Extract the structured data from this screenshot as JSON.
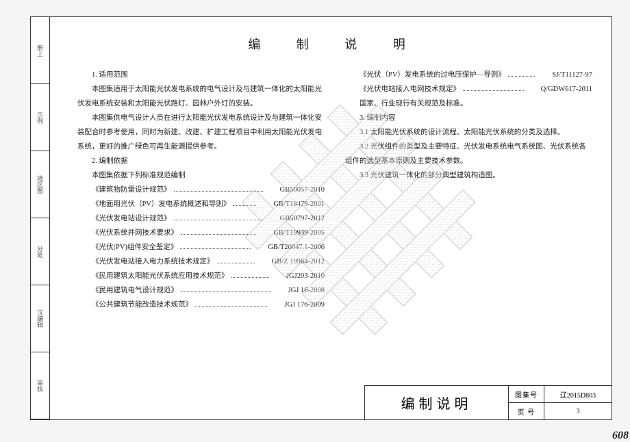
{
  "doc": {
    "title": "编 制 说 明",
    "pageNumber": "608",
    "leftMargin": [
      "册上",
      "示例",
      "地区图",
      "分处",
      "汉编辑",
      "审核"
    ],
    "colLeft": {
      "sec1": {
        "heading": "1. 适用范围",
        "para1": "本图集适用于太阳能光伏发电系统的电气设计及与建筑一体化的太阳能光伏发电系统安装和太阳能光伏路灯、园林户外灯的安装。",
        "para2": "本图集供电气设计人员在进行太阳能光伏发电系统设计及与建筑一体化安装配合时参考使用，同时为新建、改建、扩建工程项目中利用太阳能光伏发电系统，更好的推广绿色可再生能源提供参考。"
      },
      "sec2": {
        "heading": "2. 编制依据",
        "intro": "本图集依据下列标准规范编制",
        "refs": [
          {
            "t": "《建筑物防雷设计规范》",
            "c": "GB50057-2010"
          },
          {
            "t": "《地面用光伏（PV）发电系统概述和导则》",
            "c": "GB/T18479-2001"
          },
          {
            "t": "《光伏发电站设计规范》",
            "c": "GB50797-2012"
          },
          {
            "t": "《光伏系统并网技术要求》",
            "c": "GB/T19939-2005"
          },
          {
            "t": "《光伏(PV)组件安全鉴定》",
            "c": "GB/T20047.1-2006"
          },
          {
            "t": "《光伏发电站接入电力系统技术规定》",
            "c": "GB/Z 19964-2012"
          },
          {
            "t": "《民用建筑太阳能光伏系统应用技术规范》",
            "c": "JGJ203-2010"
          },
          {
            "t": "《民用建筑电气设计规范》",
            "c": "JGJ 16-2008"
          },
          {
            "t": "《公共建筑节能改造技术规范》",
            "c": "JGJ 176-2009"
          }
        ]
      }
    },
    "colRight": {
      "refs": [
        {
          "t": "《光伏（PV）发电系统的过电压保护—导则》",
          "c": "SJ/T11127-97"
        },
        {
          "t": "《光伏电站接入电网技术规定》",
          "c": "Q/GDW617-2011"
        }
      ],
      "extra": "国家、行业现行有关规范及标准。",
      "sec3": {
        "heading": "3. 编制内容",
        "items": [
          "3.1 太阳能光伏系统的设计流程、太阳能光伏系统的分类及选择。",
          "3.2 光伏组件的类型及主要特征、光伏发电系统电气系统图、光伏系统各组件的选型基本原则及主要技术参数。",
          "3.3 光伏建筑一体化的部分典型建筑构造图。"
        ]
      }
    },
    "titleBlock": {
      "main": "编制说明",
      "rows": [
        {
          "label": "图集号",
          "value": "辽2015D803"
        },
        {
          "label": "页 号",
          "value": "3"
        }
      ]
    },
    "watermark": {
      "strokeColor": "#777777",
      "fillColor": "#cccccc",
      "size": 410,
      "bandWidth": 26
    }
  }
}
